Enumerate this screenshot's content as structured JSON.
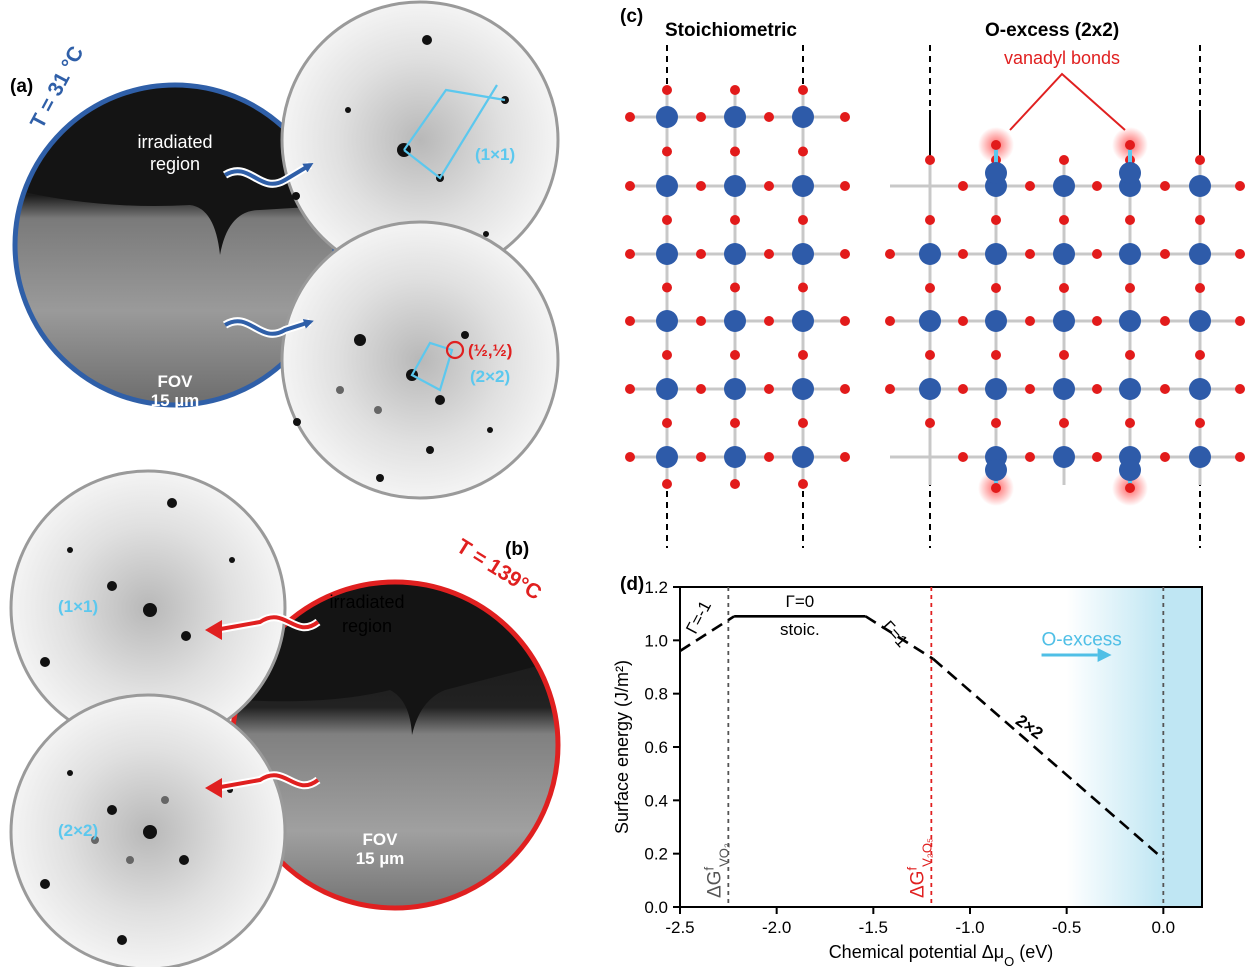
{
  "panel_a": {
    "label": "(a)",
    "temperature": "T = 31 °C",
    "irradiated": [
      "irradiated",
      "region"
    ],
    "fov": [
      "FOV",
      "15 µm"
    ],
    "leed_1x1": "(1×1)",
    "leed_2x2": "(2×2)",
    "half_spot": "(½,½)"
  },
  "panel_b": {
    "label": "(b)",
    "temperature": "T = 139°C",
    "irradiated": [
      "irradiated",
      "region"
    ],
    "fov": [
      "FOV",
      "15 µm"
    ],
    "leed_1x1": "(1×1)",
    "leed_2x2": "(2×2)"
  },
  "panel_c": {
    "label": "(c)",
    "title_left": "Stoichiometric",
    "title_right": "O-excess (2x2)",
    "annotation": "vanadyl bonds"
  },
  "colors": {
    "blue_frame": "#2f5fa8",
    "red_frame": "#e02020",
    "cyan": "#5cc8ee",
    "v_atom": "#2e5ba9",
    "o_atom": "#e21b1b"
  },
  "chart_data": {
    "label": "(d)",
    "type": "line",
    "xlabel": "Chemical potential Δμ",
    "xlabel_sub": "O",
    "xlabel_unit": " (eV)",
    "ylabel": "Surface energy (J/m²)",
    "xlim": [
      -2.5,
      0.2
    ],
    "ylim": [
      0.0,
      1.2
    ],
    "xticks": [
      -2.5,
      -2.0,
      -1.5,
      -1.0,
      -0.5,
      0.0
    ],
    "xtick_labels": [
      "-2.5",
      "-2.0",
      "-1.5",
      "-1.0",
      "-0.5",
      "0.0"
    ],
    "yticks": [
      0.0,
      0.2,
      0.4,
      0.6,
      0.8,
      1.0,
      1.2
    ],
    "ytick_labels": [
      "0.0",
      "0.2",
      "0.4",
      "0.6",
      "0.8",
      "1.0",
      "1.2"
    ],
    "series": [
      {
        "name": "Γ=-1",
        "style": "dashed",
        "x": [
          -2.5,
          -2.22
        ],
        "y": [
          0.96,
          1.09
        ]
      },
      {
        "name": "Γ=0",
        "style": "solid",
        "x": [
          -2.22,
          -1.54
        ],
        "y": [
          1.09,
          1.09
        ]
      },
      {
        "name": "Γ=1",
        "style": "dashed",
        "x": [
          -1.54,
          -1.19
        ],
        "y": [
          1.09,
          0.93
        ]
      },
      {
        "name": "2×2",
        "style": "dashed",
        "x": [
          -1.19,
          0.0
        ],
        "y": [
          0.93,
          0.18
        ]
      }
    ],
    "vlines": [
      {
        "x": -2.25,
        "color": "#555555",
        "label": "ΔG",
        "sup": "f",
        "sub": "VO₂"
      },
      {
        "x": -1.2,
        "color": "#e02020",
        "label": "ΔG",
        "sup": "f",
        "sub": "V₂O₅"
      },
      {
        "x": 0.0,
        "color": "#555555"
      }
    ],
    "annotations": {
      "gamma_m1": "Γ=-1",
      "gamma_0": "Γ=0",
      "stoic": "stoic.",
      "gamma_1": "Γ=1",
      "two_by_two": "2×2",
      "oexcess": "O-excess"
    }
  }
}
